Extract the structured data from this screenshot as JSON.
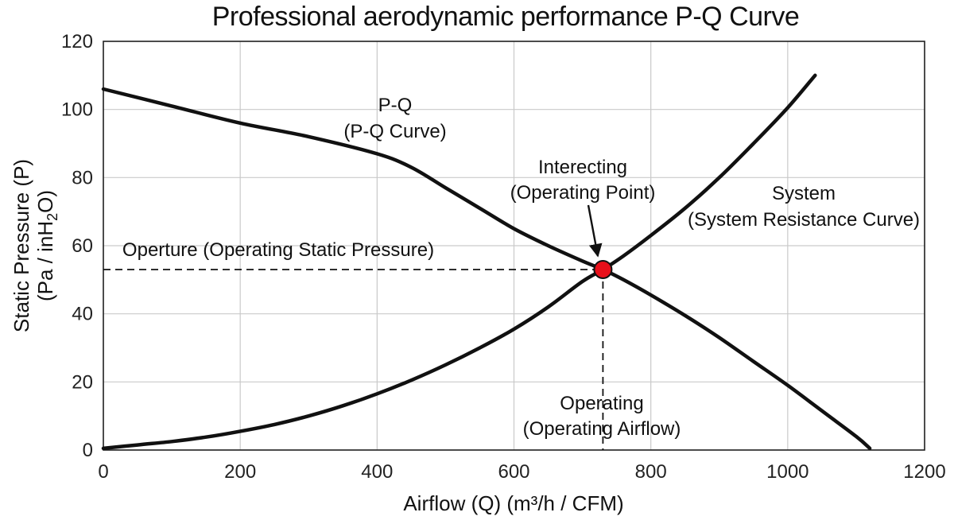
{
  "chart_data": {
    "type": "line",
    "title": "Professional aerodynamic performance P-Q Curve",
    "xlabel": "Airflow (Q) (m³/h / CFM)",
    "ylabel_line1": "Static Pressure (P)",
    "ylabel_line2_prefix": "(Pa / inH",
    "ylabel_line2_sub": "2",
    "ylabel_line2_suffix": "O)",
    "xlim": [
      0,
      1200
    ],
    "ylim": [
      0,
      120
    ],
    "x_ticks": [
      "0",
      "200",
      "400",
      "600",
      "800",
      "1000",
      "1200"
    ],
    "y_ticks": [
      "0",
      "20",
      "40",
      "60",
      "80",
      "100",
      "120"
    ],
    "grid": true,
    "series": [
      {
        "name": "P-Q Curve",
        "x": [
          0,
          100,
          200,
          300,
          400,
          450,
          500,
          550,
          600,
          650,
          700,
          730,
          760,
          800,
          850,
          900,
          950,
          1000,
          1050,
          1100,
          1120
        ],
        "y": [
          106,
          101,
          96,
          92,
          87,
          83,
          77,
          71,
          65,
          60,
          55.5,
          53,
          50,
          45.5,
          39.5,
          33,
          26,
          19,
          11.5,
          4,
          0.5
        ]
      },
      {
        "name": "System Resistance Curve",
        "x": [
          0,
          50,
          100,
          150,
          200,
          250,
          300,
          350,
          400,
          450,
          500,
          550,
          600,
          650,
          700,
          730,
          760,
          800,
          850,
          900,
          950,
          1000,
          1040
        ],
        "y": [
          0.5,
          1.5,
          2.5,
          3.8,
          5.5,
          7.5,
          10,
          13,
          16.5,
          20.5,
          25,
          30,
          35.5,
          42,
          49.5,
          53,
          57,
          63,
          71,
          80,
          90,
          100.5,
          110
        ]
      }
    ],
    "operating_point": {
      "x": 730,
      "y": 53
    },
    "annotations": {
      "pq_label_line1": "P-Q",
      "pq_label_line2": "(P-Q Curve)",
      "intersect_line1": "Interecting",
      "intersect_line2": "(Operating Point)",
      "system_line1": "System",
      "system_line2": "(System Resistance Curve)",
      "pressure_label": "Operture (Operating Static Pressure)",
      "airflow_line1": "Operating",
      "airflow_line2": "(Operating Airflow)"
    },
    "colors": {
      "curve": "#111111",
      "operating_point": "#e8101a",
      "grid": "#c9c9c9"
    }
  }
}
